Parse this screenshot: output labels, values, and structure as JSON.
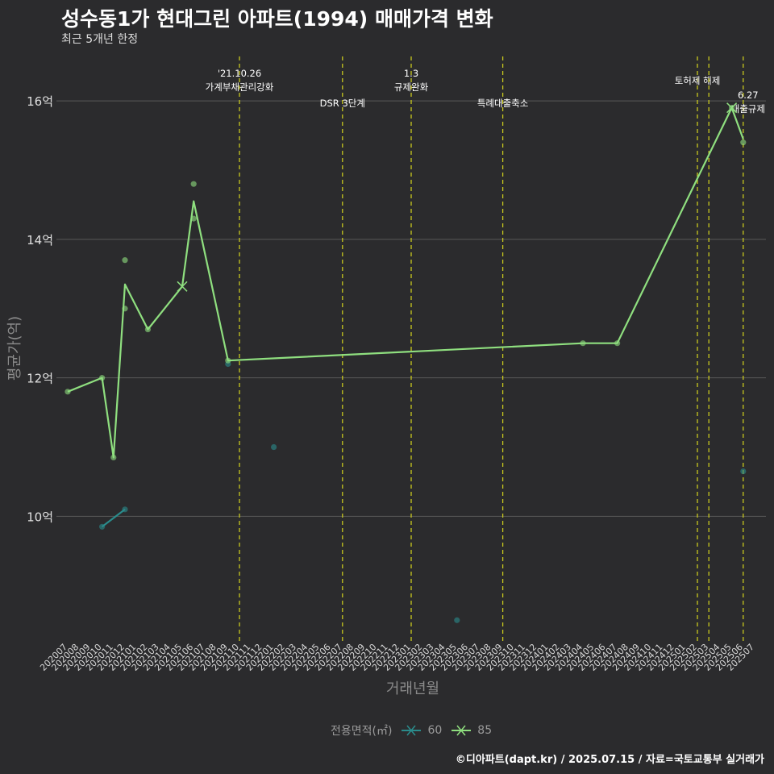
{
  "title": "성수동1가 현대그린 아파트(1994) 매매가격 변화",
  "subtitle": "최근 5개년 한정",
  "caption": "©디아파트(dapt.kr) / 2025.07.15 / 자료=국토교통부 실거래가",
  "colors": {
    "background": "#2b2b2d",
    "grid": "#5a5a5a",
    "series_60": "#2a8c8c",
    "series_85": "#8fdf7f",
    "event_line": "#c8c81e"
  },
  "chart_data": {
    "type": "line",
    "title": "성수동1가 현대그린 아파트(1994) 매매가격 변화",
    "xlabel": "거래년월",
    "ylabel": "평균가(억)",
    "ylim": [
      8.2,
      16.7
    ],
    "yticks": [
      10,
      12,
      14,
      16
    ],
    "ytick_labels": [
      "10억",
      "12억",
      "14억",
      "16억"
    ],
    "categories": [
      "202007",
      "202008",
      "202009",
      "202010",
      "202011",
      "202012",
      "202101",
      "202102",
      "202103",
      "202104",
      "202105",
      "202106",
      "202107",
      "202108",
      "202109",
      "202110",
      "202111",
      "202112",
      "202201",
      "202202",
      "202203",
      "202204",
      "202205",
      "202206",
      "202207",
      "202208",
      "202209",
      "202210",
      "202211",
      "202212",
      "202301",
      "202302",
      "202303",
      "202304",
      "202305",
      "202306",
      "202307",
      "202308",
      "202309",
      "202310",
      "202311",
      "202312",
      "202401",
      "202402",
      "202403",
      "202404",
      "202405",
      "202406",
      "202407",
      "202408",
      "202409",
      "202410",
      "202411",
      "202412",
      "202501",
      "202502",
      "202503",
      "202504",
      "202505",
      "202506",
      "202507"
    ],
    "legend_title": "전용면적(㎡)",
    "series": [
      {
        "name": "60",
        "line": [
          {
            "x": "202010",
            "y": 9.85
          },
          {
            "x": "202012",
            "y": 10.1
          }
        ],
        "points": [
          {
            "x": "202010",
            "y": 9.85
          },
          {
            "x": "202012",
            "y": 10.1
          },
          {
            "x": "202201",
            "y": 11.0
          },
          {
            "x": "202305",
            "y": 8.5
          },
          {
            "x": "202506",
            "y": 10.65
          },
          {
            "x": "202109",
            "y": 12.2
          }
        ]
      },
      {
        "name": "85",
        "line": [
          {
            "x": "202007",
            "y": 11.8
          },
          {
            "x": "202010",
            "y": 12.0
          },
          {
            "x": "202011",
            "y": 10.85
          },
          {
            "x": "202012",
            "y": 13.35
          },
          {
            "x": "202102",
            "y": 12.7
          },
          {
            "x": "202105",
            "y": 13.32
          },
          {
            "x": "202106",
            "y": 14.55
          },
          {
            "x": "202109",
            "y": 12.25
          },
          {
            "x": "202404",
            "y": 12.5
          },
          {
            "x": "202407",
            "y": 12.5
          },
          {
            "x": "202505",
            "y": 15.9
          },
          {
            "x": "202506",
            "y": 15.45
          }
        ],
        "points": [
          {
            "x": "202007",
            "y": 11.8
          },
          {
            "x": "202010",
            "y": 12.0
          },
          {
            "x": "202011",
            "y": 10.85
          },
          {
            "x": "202012",
            "y": 13.7
          },
          {
            "x": "202012",
            "y": 13.0
          },
          {
            "x": "202102",
            "y": 12.7
          },
          {
            "x": "202106",
            "y": 14.8
          },
          {
            "x": "202106",
            "y": 14.3
          },
          {
            "x": "202109",
            "y": 12.25
          },
          {
            "x": "202404",
            "y": 12.5
          },
          {
            "x": "202407",
            "y": 12.5
          },
          {
            "x": "202505",
            "y": 15.9
          },
          {
            "x": "202506",
            "y": 15.4
          }
        ],
        "markers": [
          {
            "x": "202105",
            "y": 13.32
          },
          {
            "x": "202505",
            "y": 15.9
          }
        ]
      }
    ],
    "events": [
      {
        "x": "202110",
        "labels": [
          "'21.10.26",
          "가계부채관리강화"
        ],
        "level": "top"
      },
      {
        "x": "202207",
        "labels": [
          "DSR 3단계"
        ],
        "level": "low"
      },
      {
        "x": "202301",
        "labels": [
          "1.3",
          "규제완화"
        ],
        "level": "top"
      },
      {
        "x": "202309",
        "labels": [
          "특례대출축소"
        ],
        "level": "low"
      },
      {
        "x": "202502",
        "labels": [
          "토허제 해제"
        ],
        "level": "mid"
      },
      {
        "x": "202503",
        "labels": [],
        "level": "mid"
      },
      {
        "x": "202506",
        "labels": [
          "6.27",
          "대출규제"
        ],
        "level": "right"
      }
    ]
  }
}
